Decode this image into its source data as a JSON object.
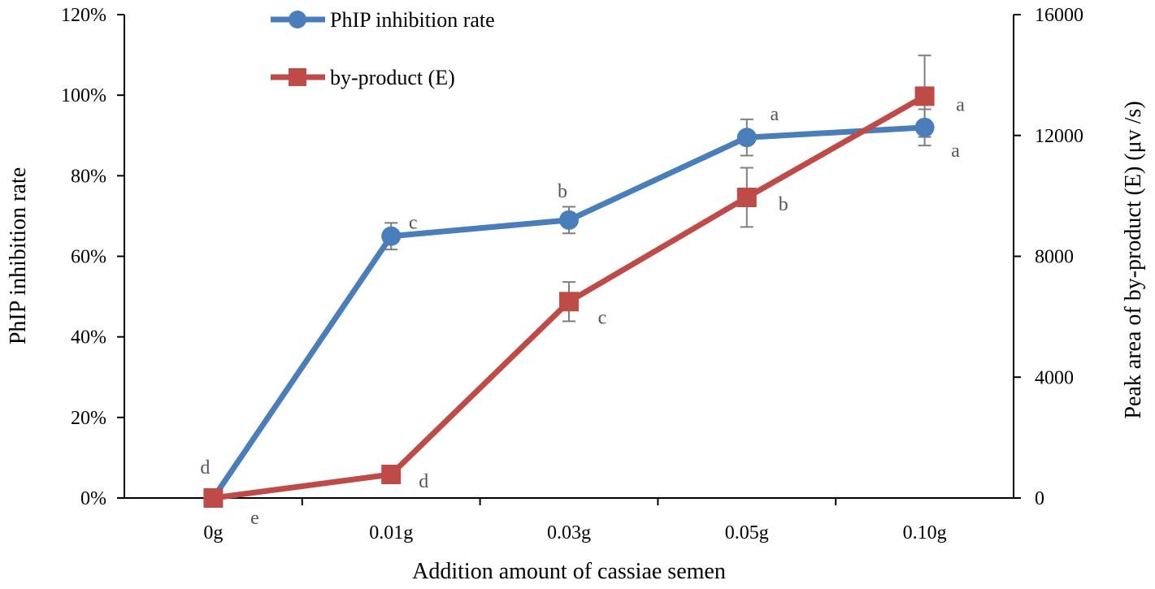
{
  "chart_data": {
    "type": "line",
    "title": "",
    "xlabel": "Addition amount of cassiae semen",
    "ylabel": "PhIP inhibition rate",
    "y2label": "Peak area of by-product (E) (μv /s)",
    "categories": [
      "0g",
      "0.01g",
      "0.03g",
      "0.05g",
      "0.10g"
    ],
    "ylim": [
      0,
      120
    ],
    "yticks": [
      "0%",
      "20%",
      "40%",
      "60%",
      "80%",
      "100%",
      "120%"
    ],
    "y2lim": [
      0,
      16000
    ],
    "y2ticks": [
      "0",
      "4000",
      "8000",
      "12000",
      "16000"
    ],
    "legend": {
      "position": "top-left"
    },
    "series": [
      {
        "name": "PhIP inhibition rate",
        "axis": "left",
        "marker": "circle",
        "color": "#4a7ebb",
        "values": [
          0,
          65,
          69,
          89.5,
          92
        ],
        "errors": [
          0,
          3.3,
          3.3,
          4.5,
          4.5
        ],
        "significance": [
          "d",
          "c",
          "b",
          "a",
          "a"
        ]
      },
      {
        "name": "by-product (E)",
        "axis": "right",
        "marker": "square",
        "color": "#be4b48",
        "values": [
          0,
          780,
          6500,
          9950,
          13300
        ],
        "errors": [
          0,
          0,
          650,
          980,
          1350
        ],
        "significance": [
          "e",
          "d",
          "c",
          "b",
          "a"
        ]
      }
    ]
  }
}
